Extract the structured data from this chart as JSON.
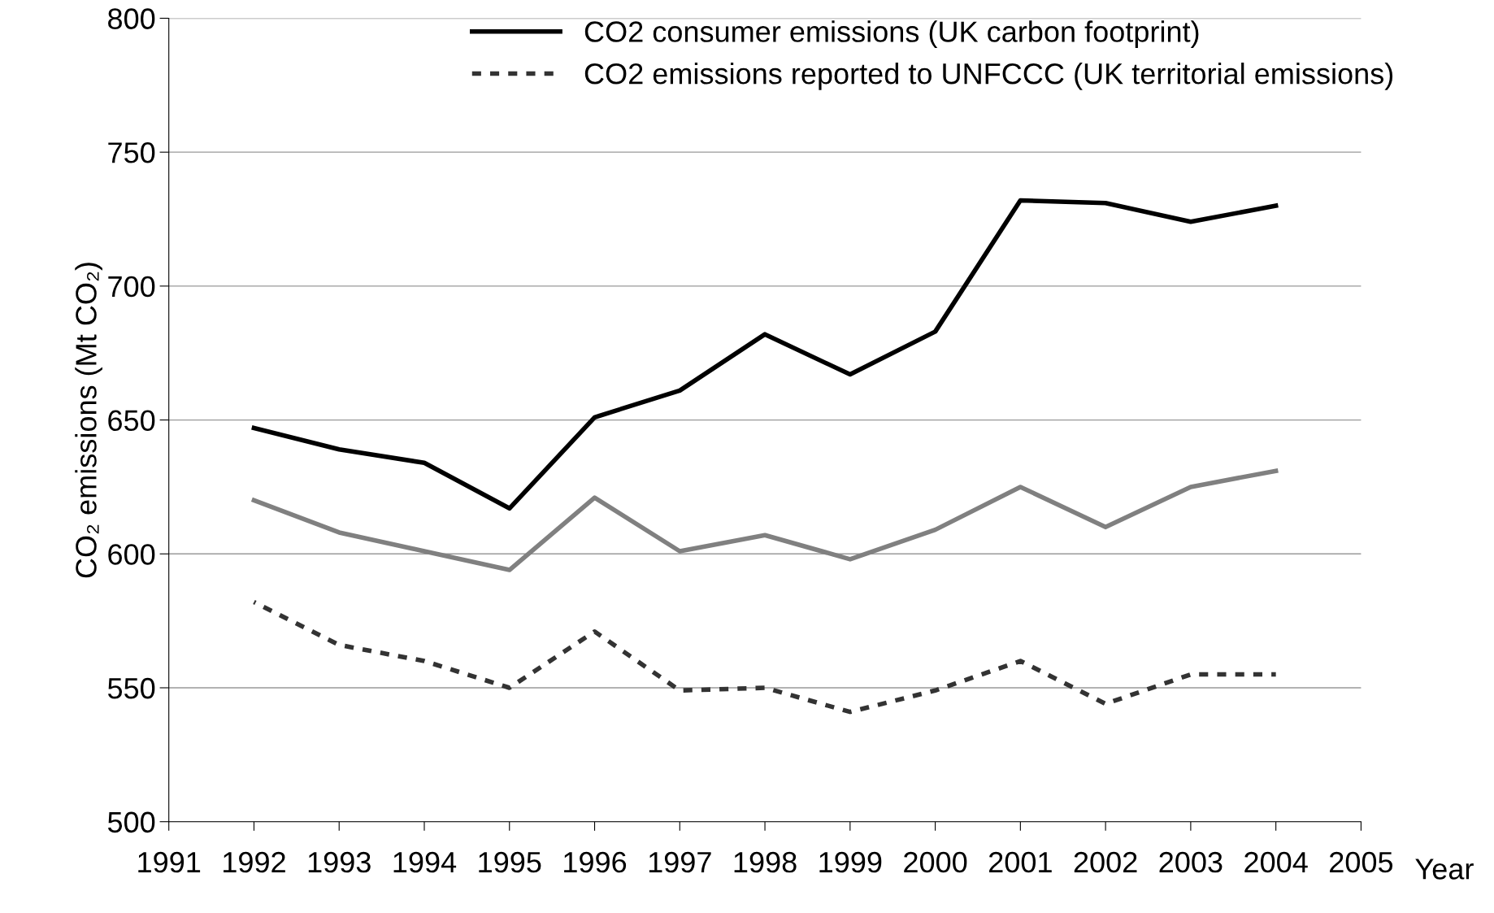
{
  "chart_data": {
    "type": "line",
    "ylabel": "CO₂ emissions (Mt CO₂)",
    "xlabel": "Year",
    "x": [
      1992,
      1993,
      1994,
      1995,
      1996,
      1997,
      1998,
      1999,
      2000,
      2001,
      2002,
      2003,
      2004
    ],
    "series": [
      {
        "name": "CO2 consumer emissions (UK carbon footprint)",
        "color": "#000000",
        "line_style": "solid",
        "values": [
          647,
          639,
          634,
          617,
          651,
          661,
          682,
          667,
          683,
          732,
          731,
          724,
          730
        ]
      },
      {
        "color": "#808080",
        "line_style": "solid",
        "values": [
          620,
          608,
          601,
          594,
          621,
          601,
          607,
          598,
          609,
          625,
          610,
          625,
          631
        ]
      },
      {
        "name": "CO2 emissions reported to UNFCCC (UK territorial emissions)",
        "color": "#333333",
        "line_style": "dashed",
        "values": [
          582,
          566,
          560,
          550,
          571,
          549,
          550,
          541,
          549,
          560,
          544,
          555,
          555
        ]
      }
    ],
    "xlim": [
      1991,
      2005
    ],
    "xticks": [
      1991,
      1992,
      1993,
      1994,
      1995,
      1996,
      1997,
      1998,
      1999,
      2000,
      2001,
      2002,
      2003,
      2004,
      2005
    ],
    "ylim": [
      500,
      800
    ],
    "yticks": [
      500,
      550,
      600,
      650,
      700,
      750,
      800
    ],
    "grid": "y",
    "legend": "top right",
    "marker": "none"
  }
}
